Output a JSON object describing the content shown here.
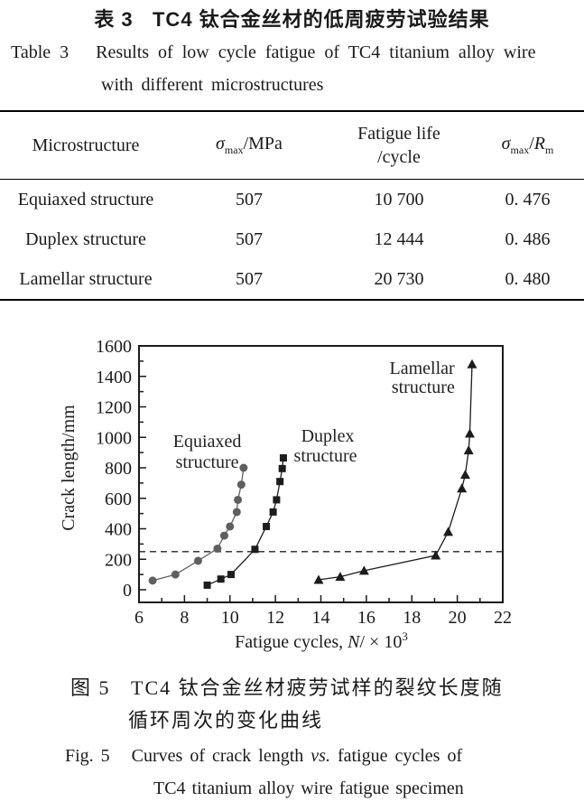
{
  "colors": {
    "text": "#1a1a1a",
    "equiaxed_gray": "#5f5f5f",
    "black_series": "#1c1c1c",
    "frame": "#1a1a1a"
  },
  "table_caption": {
    "zh": "表 3   TC4 钛合金丝材的低周疲劳试验结果",
    "en_line1": "Table 3   Results of low cycle fatigue of TC4 titanium alloy wire",
    "en_line2": "with different microstructures"
  },
  "table": {
    "header": {
      "microstructure": "Microstructure",
      "sigma": "σ",
      "sigma_sub": "max",
      "sigma_unit": "/MPa",
      "life_line1": "Fatigue life",
      "life_line2": "/cycle",
      "ratio_sigma": "σ",
      "ratio_sigma_sub": "max",
      "ratio_slash": "/",
      "ratio_R": "R",
      "ratio_R_sub": "m"
    },
    "rows": [
      {
        "microstructure": "Equiaxed structure",
        "smax": "507",
        "life": "10 700",
        "ratio": "0. 476"
      },
      {
        "microstructure": "Duplex structure",
        "smax": "507",
        "life": "12 444",
        "ratio": "0. 486"
      },
      {
        "microstructure": "Lamellar structure",
        "smax": "507",
        "life": "20 730",
        "ratio": "0. 480"
      }
    ]
  },
  "chart_data": {
    "type": "line",
    "title": "",
    "ylabel": "Crack length/mm",
    "xlabel_parts": {
      "prefix": "Fatigue cycles, ",
      "var": "N",
      "mid": "/ × 10",
      "sup": "3"
    },
    "xlim": [
      6,
      22
    ],
    "ylim": [
      0,
      1600
    ],
    "x_major_ticks": [
      6,
      8,
      10,
      12,
      14,
      16,
      18,
      20,
      22
    ],
    "x_minor_step": 1,
    "y_major_ticks": [
      0,
      200,
      400,
      600,
      800,
      1000,
      1200,
      1400,
      1600
    ],
    "y_minor_step": 100,
    "grid": false,
    "legend_position": "inline-annotations",
    "dashed_reference_line_y": 250,
    "series": [
      {
        "name": "Equiaxed structure",
        "marker": "circle",
        "color": "#5f5f5f",
        "points": [
          [
            6.6,
            60
          ],
          [
            7.6,
            100
          ],
          [
            8.6,
            190
          ],
          [
            9.45,
            270
          ],
          [
            9.75,
            355
          ],
          [
            10.0,
            415
          ],
          [
            10.3,
            510
          ],
          [
            10.35,
            590
          ],
          [
            10.5,
            690
          ],
          [
            10.6,
            800
          ]
        ],
        "labels": [
          {
            "text": "Equiaxed",
            "x": 9.0,
            "y": 978
          },
          {
            "text": "structure",
            "x": 9.0,
            "y": 841
          }
        ]
      },
      {
        "name": "Duplex structure",
        "marker": "square",
        "color": "#1c1c1c",
        "points": [
          [
            9.0,
            30
          ],
          [
            9.6,
            70
          ],
          [
            10.05,
            100
          ],
          [
            11.1,
            265
          ],
          [
            11.6,
            415
          ],
          [
            11.9,
            510
          ],
          [
            12.05,
            590
          ],
          [
            12.2,
            710
          ],
          [
            12.3,
            795
          ],
          [
            12.35,
            865
          ]
        ],
        "labels": [
          {
            "text": "Duplex",
            "x": 14.3,
            "y": 1013
          },
          {
            "text": "structure",
            "x": 14.2,
            "y": 883
          }
        ]
      },
      {
        "name": "Lamellar structure",
        "marker": "triangle",
        "color": "#1c1c1c",
        "points": [
          [
            13.9,
            65
          ],
          [
            14.85,
            85
          ],
          [
            15.9,
            125
          ],
          [
            19.05,
            225
          ],
          [
            19.6,
            380
          ],
          [
            20.2,
            665
          ],
          [
            20.35,
            755
          ],
          [
            20.5,
            915
          ],
          [
            20.55,
            1025
          ],
          [
            20.65,
            1480
          ]
        ],
        "labels": [
          {
            "text": "Lamellar",
            "x": 18.45,
            "y": 1458
          },
          {
            "text": "structure",
            "x": 18.5,
            "y": 1333
          }
        ]
      }
    ]
  },
  "figure_caption": {
    "zh_line1": "图 5   TC4 钛合金丝材疲劳试样的裂纹长度随",
    "zh_line2": "循环周次的变化曲线",
    "en1_prefix": "Fig. 5   Curves of crack length ",
    "en1_italic": "vs.",
    "en1_suffix": " fatigue cycles of",
    "en_line2": "TC4 titanium alloy wire fatigue specimen"
  }
}
